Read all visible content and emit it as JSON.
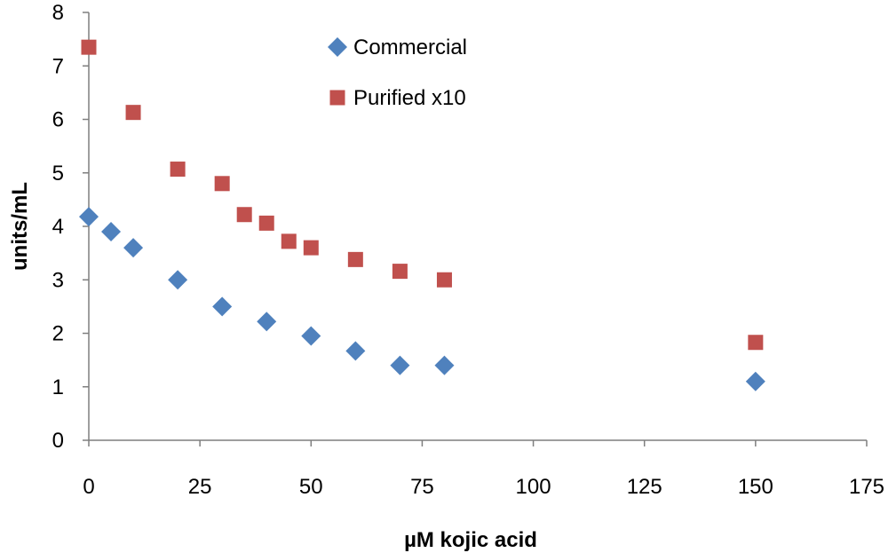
{
  "chart_data": {
    "type": "scatter",
    "title": "",
    "xlabel": "µM kojic acid",
    "ylabel": "units/mL",
    "xlim": [
      0,
      175
    ],
    "ylim": [
      0,
      8
    ],
    "x_ticks": [
      0,
      25,
      50,
      75,
      100,
      125,
      150,
      175
    ],
    "y_ticks": [
      0,
      1,
      2,
      3,
      4,
      5,
      6,
      7,
      8
    ],
    "grid": false,
    "legend_position": "top-center",
    "series": [
      {
        "name": "Commercial",
        "marker": "diamond",
        "color": "#4f81bd",
        "x": [
          0,
          5,
          10,
          20,
          30,
          40,
          50,
          60,
          70,
          80,
          150
        ],
        "y": [
          4.18,
          3.9,
          3.6,
          3.0,
          2.5,
          2.22,
          1.95,
          1.67,
          1.4,
          1.4,
          1.1
        ]
      },
      {
        "name": "Purified x10",
        "marker": "square",
        "color": "#c0504d",
        "x": [
          0,
          10,
          20,
          30,
          35,
          40,
          45,
          50,
          60,
          70,
          80,
          150
        ],
        "y": [
          7.35,
          6.13,
          5.07,
          4.8,
          4.22,
          4.06,
          3.72,
          3.6,
          3.38,
          3.16,
          3.0,
          1.83
        ]
      }
    ]
  }
}
